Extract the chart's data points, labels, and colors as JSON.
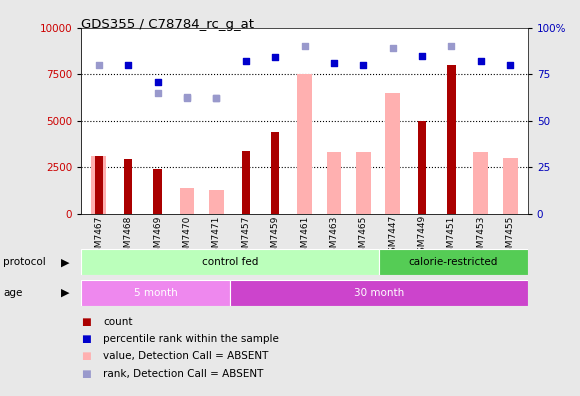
{
  "title": "GDS355 / C78784_rc_g_at",
  "samples": [
    "GSM7467",
    "GSM7468",
    "GSM7469",
    "GSM7470",
    "GSM7471",
    "GSM7457",
    "GSM7459",
    "GSM7461",
    "GSM7463",
    "GSM7465",
    "GSM7447",
    "GSM7449",
    "GSM7451",
    "GSM7453",
    "GSM7455"
  ],
  "count_values": [
    3100,
    2950,
    2400,
    null,
    null,
    3400,
    4400,
    null,
    null,
    null,
    null,
    5000,
    8000,
    null,
    null
  ],
  "value_absent": [
    3100,
    null,
    null,
    1400,
    1300,
    null,
    null,
    7500,
    3300,
    3300,
    6500,
    null,
    null,
    3300,
    3000
  ],
  "rank_absent": [
    null,
    null,
    6500,
    6200,
    6200,
    null,
    null,
    null,
    null,
    null,
    null,
    null,
    null,
    null,
    null
  ],
  "percentile_dark": [
    null,
    8000,
    7100,
    null,
    null,
    8200,
    8400,
    null,
    8100,
    8000,
    null,
    8500,
    null,
    8200,
    8000
  ],
  "percentile_light": [
    8000,
    null,
    null,
    6300,
    6200,
    null,
    null,
    9000,
    null,
    null,
    8900,
    null,
    9000,
    null,
    null
  ],
  "left_yaxis": {
    "min": 0,
    "max": 10000,
    "ticks": [
      0,
      2500,
      5000,
      7500,
      10000
    ],
    "color": "#cc0000"
  },
  "right_yaxis": {
    "min": 0,
    "max": 100,
    "ticks": [
      0,
      25,
      50,
      75,
      100
    ],
    "color": "#0000bb"
  },
  "protocol_groups": [
    {
      "label": "control fed",
      "start": 0,
      "end": 10,
      "color": "#bbffbb"
    },
    {
      "label": "calorie-restricted",
      "start": 10,
      "end": 15,
      "color": "#55cc55"
    }
  ],
  "age_groups": [
    {
      "label": "5 month",
      "start": 0,
      "end": 5,
      "color": "#ee88ee"
    },
    {
      "label": "30 month",
      "start": 5,
      "end": 15,
      "color": "#cc44cc"
    }
  ],
  "bg_color": "#e8e8e8",
  "plot_bg": "#ffffff",
  "bar_color_count": "#aa0000",
  "bar_color_absent_value": "#ffb0b0",
  "dot_color_dark": "#0000cc",
  "dot_color_light": "#9999cc",
  "dotline_yvals": [
    2500,
    5000,
    7500
  ]
}
